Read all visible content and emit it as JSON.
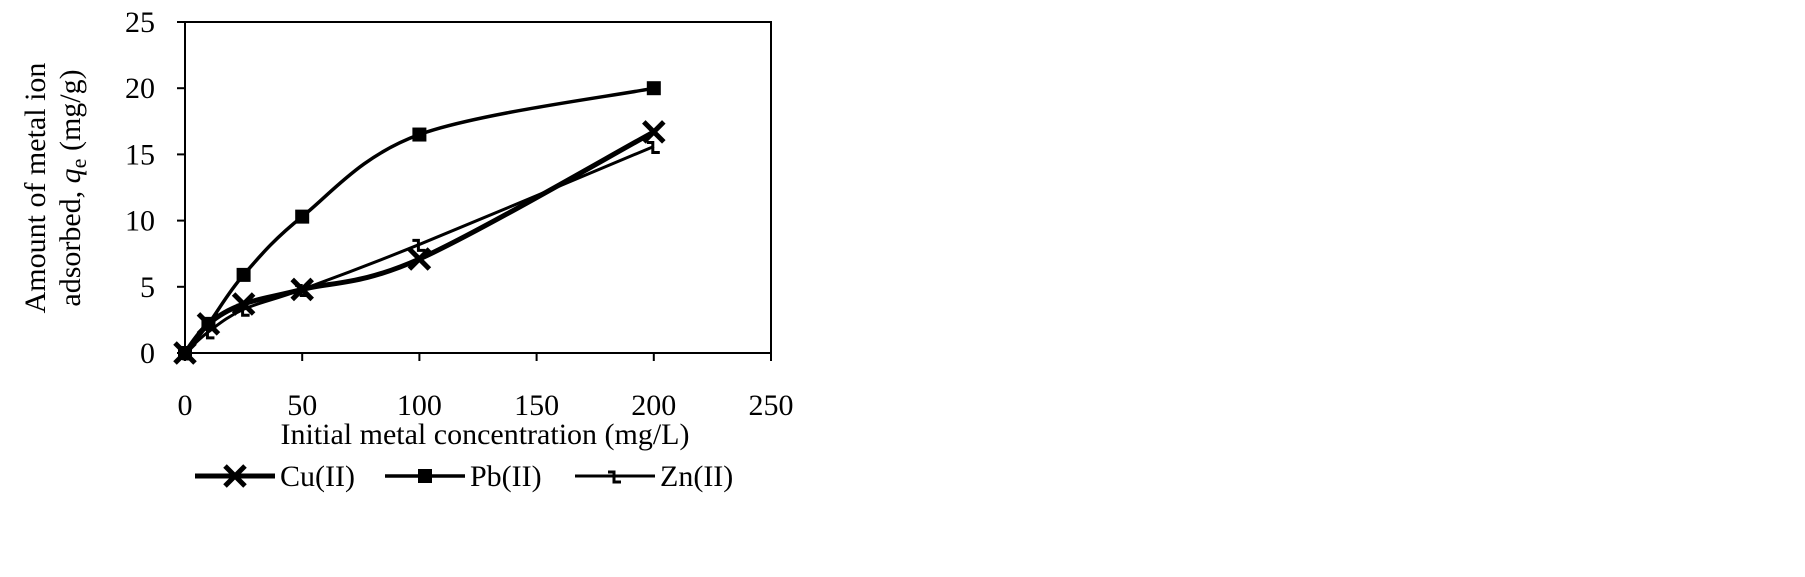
{
  "chart_data": {
    "type": "line",
    "title": "",
    "xlabel": "Initial metal concentration (mg/L)",
    "ylabel": {
      "line1": "Amount of metal ion",
      "line2_prefix": "adsorbed, ",
      "symbol": "q",
      "subscript": "e",
      "unit": " (mg/g)"
    },
    "xlim": [
      0,
      250
    ],
    "ylim": [
      0,
      25
    ],
    "xticks": [
      0,
      50,
      100,
      150,
      200,
      250
    ],
    "yticks": [
      0,
      5,
      10,
      15,
      20,
      25
    ],
    "grid": false,
    "legend_position": "bottom",
    "series": [
      {
        "name": "Cu(II)",
        "marker": "x",
        "color": "#000000",
        "x": [
          0,
          10,
          25,
          50,
          100,
          200
        ],
        "y": [
          0,
          2.2,
          3.7,
          4.8,
          7.1,
          16.7
        ]
      },
      {
        "name": "Pb(II)",
        "marker": "square",
        "color": "#000000",
        "x": [
          0,
          10,
          25,
          50,
          100,
          200
        ],
        "y": [
          0,
          2.2,
          5.9,
          10.3,
          16.5,
          20.0
        ]
      },
      {
        "name": "Zn(II)",
        "marker": "tick",
        "color": "#000000",
        "x": [
          0,
          10,
          25,
          50,
          100,
          200
        ],
        "y": [
          0,
          1.6,
          3.3,
          4.8,
          8.2,
          15.6
        ]
      }
    ]
  }
}
